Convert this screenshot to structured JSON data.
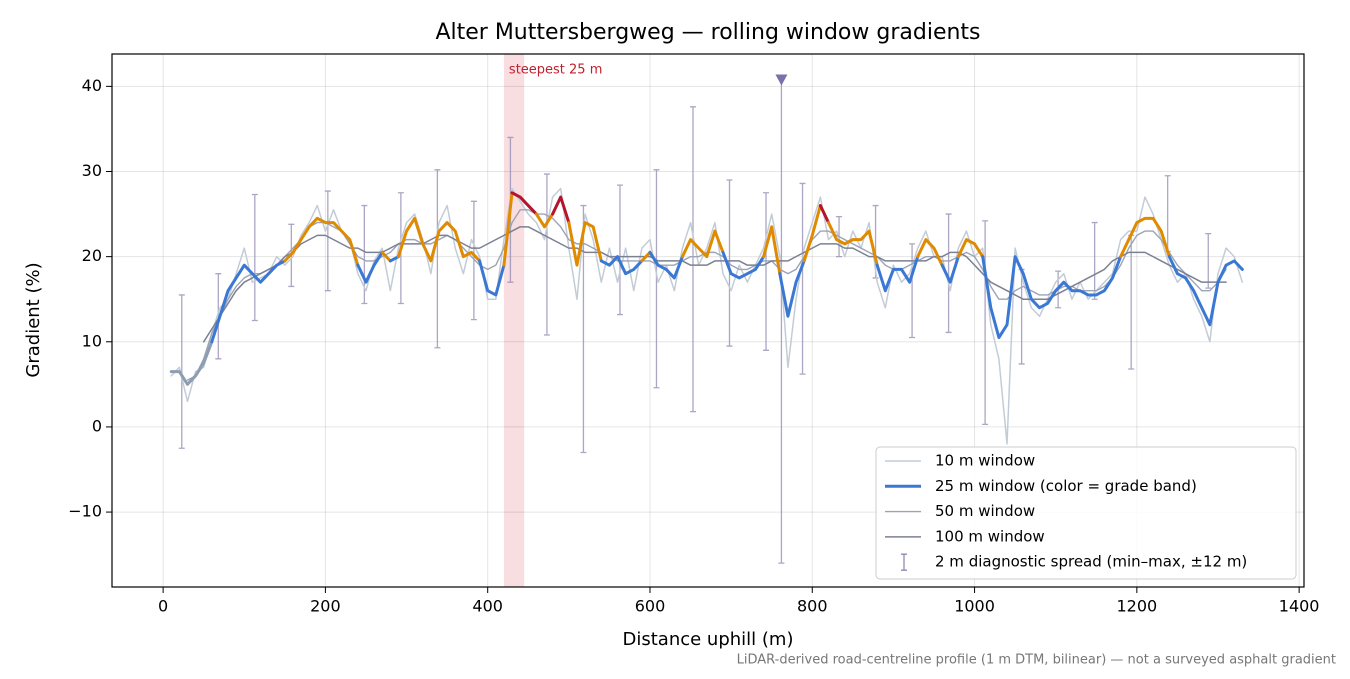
{
  "chart_data": {
    "type": "line",
    "title": "Alter Muttersbergweg — rolling window gradients",
    "xlabel": "Distance uphill (m)",
    "ylabel": "Gradient (%)",
    "footnote": "LiDAR-derived road-centreline profile (1 m DTM, bilinear) — not a surveyed asphalt gradient",
    "xlim": [
      -63,
      1406
    ],
    "ylim": [
      -18.8,
      43.8
    ],
    "xticks": [
      0,
      200,
      400,
      600,
      800,
      1000,
      1200,
      1400
    ],
    "yticks": [
      {
        "value": -10,
        "label": "−10"
      },
      0,
      10,
      20,
      30,
      40
    ],
    "grid": true,
    "legend": "lower right",
    "x": [
      10,
      20,
      30,
      40,
      50,
      60,
      70,
      80,
      90,
      100,
      110,
      120,
      130,
      140,
      150,
      160,
      170,
      180,
      190,
      200,
      210,
      220,
      230,
      240,
      250,
      260,
      270,
      280,
      290,
      300,
      310,
      320,
      330,
      340,
      350,
      360,
      370,
      380,
      390,
      400,
      410,
      420,
      430,
      440,
      450,
      460,
      470,
      480,
      490,
      500,
      510,
      520,
      530,
      540,
      550,
      560,
      570,
      580,
      590,
      600,
      610,
      620,
      630,
      640,
      650,
      660,
      670,
      680,
      690,
      700,
      710,
      720,
      730,
      740,
      750,
      760,
      770,
      780,
      790,
      800,
      810,
      820,
      830,
      840,
      850,
      860,
      870,
      880,
      890,
      900,
      910,
      920,
      930,
      940,
      950,
      960,
      970,
      980,
      990,
      1000,
      1010,
      1020,
      1030,
      1040,
      1050,
      1060,
      1070,
      1080,
      1090,
      1100,
      1110,
      1120,
      1130,
      1140,
      1150,
      1160,
      1170,
      1180,
      1190,
      1200,
      1210,
      1220,
      1230,
      1240,
      1250,
      1260,
      1270,
      1280,
      1290,
      1300,
      1310,
      1320,
      1330
    ],
    "series": [
      {
        "name": "10 m window",
        "color": "#c3ccd6",
        "width": 1.5,
        "values": [
          6,
          7,
          3,
          6.5,
          7,
          11,
          14,
          15,
          18,
          21,
          17,
          17.5,
          18,
          20,
          19,
          20,
          22.5,
          24,
          26,
          23,
          25.5,
          23,
          22,
          18,
          16,
          19.5,
          21,
          16,
          21,
          24,
          25,
          22,
          18,
          24,
          26,
          21,
          18,
          22,
          20,
          15,
          15,
          22,
          28,
          26.5,
          25,
          24,
          22,
          27,
          28,
          21,
          15,
          25,
          22,
          17,
          21,
          17,
          21,
          16,
          21,
          22,
          17,
          19,
          16,
          21,
          24,
          19,
          21,
          24,
          18,
          16,
          19,
          17,
          19,
          21,
          25,
          20,
          7,
          15,
          21,
          24,
          27,
          22,
          23,
          20,
          23,
          21,
          24,
          17,
          14,
          19,
          17,
          18,
          21,
          23,
          20,
          20,
          16,
          21,
          23,
          20,
          21,
          12,
          8,
          -2,
          21,
          17,
          14,
          13,
          15,
          17,
          18,
          15,
          17,
          15,
          16,
          17,
          18,
          22,
          23,
          23,
          27,
          25,
          22,
          19,
          17,
          18,
          15,
          13,
          10,
          18,
          21,
          20,
          17
        ]
      },
      {
        "name": "25 m window (color = grade band)",
        "color": "#3a78d4",
        "width": 3,
        "band_limits": [
          10,
          20,
          25
        ],
        "band_colors": [
          "#8d9db2",
          "#3a78d4",
          "#e08a00",
          "#b5152b"
        ],
        "values": [
          6.5,
          6.5,
          5,
          6,
          7.5,
          10,
          13,
          16,
          17.5,
          19,
          18,
          17,
          18,
          19,
          19.5,
          20.5,
          22,
          23.5,
          24.5,
          24,
          24,
          23,
          22,
          19,
          17,
          19,
          20.5,
          19.5,
          20,
          23,
          24.5,
          21.5,
          19.5,
          23,
          24,
          23,
          20,
          20.5,
          19.5,
          16,
          15.5,
          19,
          27.5,
          27,
          26,
          25,
          23.5,
          25,
          27,
          24,
          19,
          24,
          23.5,
          19.5,
          19,
          20,
          18,
          18.5,
          19.5,
          20.5,
          19,
          18.5,
          17.5,
          20,
          22,
          21,
          20,
          23,
          20.5,
          18,
          17.5,
          18,
          18.5,
          20,
          23.5,
          18,
          13,
          17,
          19.5,
          22.5,
          26,
          24,
          22,
          21.5,
          22,
          22,
          23,
          19,
          16,
          18.5,
          18.5,
          17,
          20,
          22,
          21,
          19,
          17,
          20,
          22,
          21.5,
          20,
          14,
          10.5,
          12,
          20,
          18,
          15,
          14,
          14.5,
          16,
          17,
          16,
          16,
          15.5,
          15.5,
          16,
          17.5,
          20,
          22,
          24,
          24.5,
          24.5,
          23,
          20,
          18,
          17.5,
          16,
          14,
          12,
          17,
          19,
          19.5,
          18.5
        ]
      },
      {
        "name": "50 m window",
        "color": "#9ba4b6",
        "width": 1.4,
        "values": [
          null,
          null,
          5.5,
          6,
          8,
          11,
          13,
          15,
          16.5,
          17.5,
          18,
          18,
          18.5,
          19,
          20,
          21,
          22,
          23.5,
          24,
          24,
          23.5,
          23,
          21.5,
          20,
          19.5,
          19.5,
          20,
          20.5,
          21.5,
          22,
          22,
          21.5,
          21.5,
          22,
          22.5,
          22,
          21,
          20,
          19,
          18.5,
          19,
          21,
          24,
          25.5,
          25.5,
          25,
          25,
          24.5,
          23.5,
          22,
          21.5,
          21.5,
          21,
          20.5,
          20,
          19.5,
          19.5,
          19.5,
          19.5,
          19.5,
          19,
          19,
          19,
          19.5,
          20,
          20,
          20.5,
          20.5,
          20,
          19,
          18.5,
          18.5,
          19,
          19.5,
          19.5,
          18.5,
          18,
          18.5,
          20,
          22,
          23,
          23,
          22.5,
          22,
          21.5,
          21,
          20.5,
          20,
          19,
          18.5,
          18.5,
          19,
          19.5,
          20,
          20,
          19.5,
          19.5,
          20,
          20.5,
          20,
          18.5,
          16.5,
          15,
          15,
          16,
          16.5,
          16,
          15.5,
          15.5,
          16,
          16.5,
          16.5,
          16,
          16,
          16,
          16.5,
          17.5,
          19,
          21,
          22.5,
          23,
          23,
          22,
          20.5,
          19,
          18,
          17,
          16,
          16,
          17,
          18.5,
          null,
          null
        ]
      },
      {
        "name": "100 m window",
        "color": "#7b8192",
        "width": 1.5,
        "values": [
          null,
          null,
          null,
          null,
          10,
          11.5,
          13,
          14.5,
          16,
          17,
          17.5,
          18,
          18.5,
          19,
          20,
          20.5,
          21.5,
          22,
          22.5,
          22.5,
          22,
          21.5,
          21,
          21,
          20.5,
          20.5,
          20.5,
          21,
          21.5,
          21.5,
          21.5,
          21.5,
          22,
          22.5,
          22.5,
          22,
          21.5,
          21,
          21,
          21.5,
          22,
          22.5,
          23,
          23.5,
          23.5,
          23,
          22.5,
          22,
          21.5,
          21,
          21,
          20.5,
          20.5,
          20.5,
          20,
          20,
          20,
          20,
          20,
          20,
          19.5,
          19.5,
          19.5,
          19.5,
          19,
          19,
          19,
          19.5,
          19.5,
          19.5,
          19.5,
          19,
          19,
          19,
          19.5,
          19.5,
          19.5,
          20,
          20.5,
          21,
          21.5,
          21.5,
          21.5,
          21,
          21,
          20.5,
          20,
          20,
          19.5,
          19.5,
          19.5,
          19.5,
          19.5,
          19.5,
          20,
          20,
          20.5,
          20.5,
          20,
          19,
          18,
          17,
          16.5,
          16,
          15.5,
          15,
          15,
          15,
          15,
          15.5,
          16,
          16.5,
          17,
          17.5,
          18,
          18.5,
          19.5,
          20,
          20.5,
          20.5,
          20.5,
          20,
          19.5,
          19,
          18.5,
          18,
          17.5,
          17,
          17,
          17,
          17,
          null,
          null
        ]
      }
    ],
    "errorbars": {
      "name": "2 m diagnostic spread (min–max, ±12 m)",
      "color": "#9088b0",
      "x": [
        23,
        68,
        113,
        158,
        203,
        248,
        293,
        338,
        383,
        428,
        473,
        518,
        563,
        608,
        653,
        698,
        743,
        762,
        788,
        833,
        878,
        923,
        968,
        1013,
        1058,
        1103,
        1148,
        1193,
        1238,
        1288
      ],
      "min": [
        -2.5,
        8,
        12.5,
        16.5,
        16,
        14.5,
        14.5,
        9.3,
        12.6,
        17,
        10.8,
        -3,
        13.2,
        4.6,
        1.8,
        9.5,
        9,
        -16,
        6.2,
        20,
        17.5,
        10.5,
        11.1,
        0.3,
        7.4,
        14,
        15,
        6.8,
        20.6,
        16.3
      ],
      "max": [
        15.5,
        18,
        27.3,
        23.8,
        27.7,
        26,
        27.5,
        30.2,
        26.5,
        34,
        29.7,
        26,
        28.4,
        30.2,
        37.6,
        29,
        27.5,
        40.8,
        28.6,
        24.7,
        26,
        21.5,
        25,
        24.2,
        18.5,
        18.3,
        24,
        22.5,
        29.5,
        22.7
      ]
    },
    "marker": {
      "x": 762,
      "y": 40.8,
      "color": "#7d6fa8"
    },
    "highlight": {
      "x0": 420,
      "x1": 445,
      "label": "steepest 25 m",
      "color": "#e8909a",
      "label_color": "#c0202e"
    }
  }
}
